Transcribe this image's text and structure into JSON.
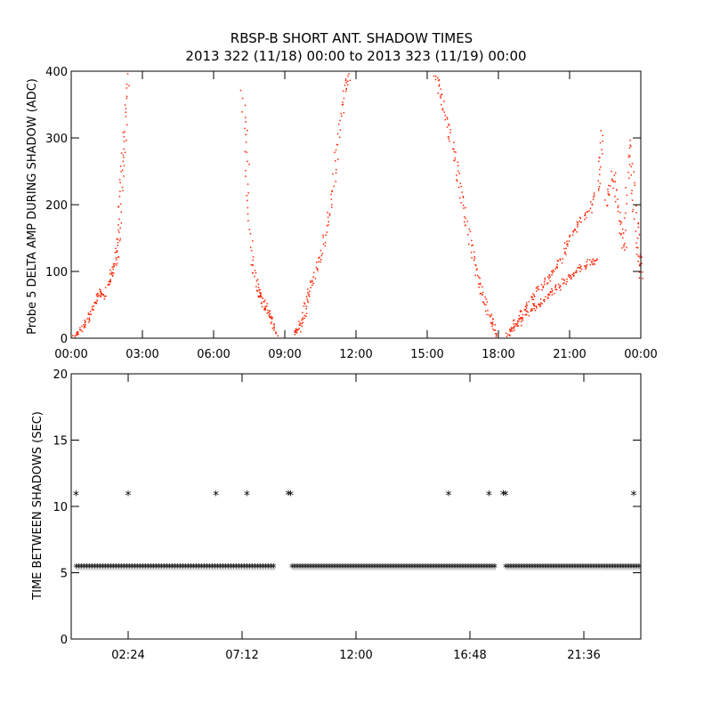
{
  "title_line1": "RBSP-B SHORT ANT. SHADOW TIMES",
  "title_line2": "2013 322 (11/18) 00:00 to 2013 323 (11/19) 00:00",
  "colors": {
    "amp_series": "#ff2200",
    "shadow_series": "#000000",
    "axes": "#000000",
    "background": "#ffffff"
  },
  "chart_data": [
    {
      "type": "scatter",
      "panel": "top",
      "ylabel": "Probe 5 DELTA AMP DURING SHADOW (ADC)",
      "xlabel": "",
      "x_unit": "hours",
      "xlim": [
        0,
        24
      ],
      "ylim": [
        0,
        400
      ],
      "x_tick_values": [
        0,
        3,
        6,
        9,
        12,
        15,
        18,
        21,
        24
      ],
      "x_tick_labels": [
        "00:00",
        "03:00",
        "06:00",
        "09:00",
        "12:00",
        "15:00",
        "18:00",
        "21:00",
        "00:00"
      ],
      "y_tick_values": [
        0,
        100,
        200,
        300,
        400
      ],
      "y_tick_labels": [
        "0",
        "100",
        "200",
        "300",
        "400"
      ],
      "grid": false,
      "series": [
        {
          "color": "#ff2200",
          "segments": [
            {
              "x": [
                0.1,
                0.4,
                0.7,
                1.0,
                1.2,
                1.4
              ],
              "y": [
                3,
                12,
                32,
                55,
                70,
                62
              ]
            },
            {
              "x": [
                1.5,
                1.7,
                1.9,
                2.0,
                2.1,
                2.25,
                2.35
              ],
              "y": [
                80,
                100,
                120,
                160,
                240,
                300,
                400
              ]
            },
            {
              "x": [
                7.2,
                7.4,
                7.6,
                7.8,
                8.0,
                8.2,
                8.4,
                8.6
              ],
              "y": [
                370,
                250,
                120,
                75,
                60,
                45,
                30,
                5
              ]
            },
            {
              "x": [
                9.4,
                9.6,
                9.8,
                10.0,
                10.3,
                10.6,
                10.9,
                11.2,
                11.5,
                11.7
              ],
              "y": [
                5,
                15,
                40,
                70,
                100,
                140,
                200,
                290,
                370,
                400
              ]
            },
            {
              "x": [
                15.3,
                15.6,
                15.9,
                16.2,
                16.5,
                16.8,
                17.1,
                17.4,
                17.7,
                17.9
              ],
              "y": [
                400,
                360,
                310,
                260,
                200,
                140,
                90,
                55,
                25,
                3
              ]
            },
            {
              "x": [
                18.3,
                18.6,
                19.0,
                19.4,
                19.8,
                20.2,
                20.6,
                21.0,
                21.4,
                21.8,
                22.2,
                22.4
              ],
              "y": [
                3,
                20,
                40,
                60,
                80,
                95,
                120,
                150,
                175,
                190,
                230,
                320
              ]
            },
            {
              "x": [
                18.6,
                19.0,
                19.4,
                19.8,
                20.2,
                20.6,
                21.0,
                21.4,
                21.8,
                22.2
              ],
              "y": [
                15,
                30,
                45,
                55,
                70,
                80,
                95,
                105,
                115,
                115
              ]
            },
            {
              "x": [
                22.5,
                22.8,
                23.1,
                23.3,
                23.5,
                23.7,
                23.9,
                24.0
              ],
              "y": [
                200,
                250,
                180,
                130,
                300,
                200,
                130,
                90
              ]
            }
          ]
        }
      ]
    },
    {
      "type": "scatter",
      "panel": "bottom",
      "ylabel": "TIME BETWEEN SHADOWS (SEC)",
      "xlabel": "",
      "x_unit": "hours",
      "xlim": [
        0,
        24
      ],
      "ylim": [
        0,
        20
      ],
      "x_tick_values": [
        2.4,
        7.2,
        12.0,
        16.8,
        21.6
      ],
      "x_tick_labels": [
        "02:24",
        "07:12",
        "12:00",
        "16:48",
        "21:36"
      ],
      "y_tick_values": [
        0,
        5,
        10,
        15,
        20
      ],
      "y_tick_labels": [
        "0",
        "5",
        "10",
        "15",
        "20"
      ],
      "grid": false,
      "marker": "asterisk",
      "baseline_value": 5.45,
      "baseline_ranges": [
        [
          0.2,
          8.6
        ],
        [
          9.3,
          17.9
        ],
        [
          18.3,
          24.0
        ]
      ],
      "series": [
        {
          "color": "#000000",
          "x": [
            0.2,
            2.4,
            6.1,
            7.4,
            9.15,
            9.25,
            15.9,
            17.6,
            18.2,
            18.3,
            23.7
          ],
          "y": [
            10.9,
            10.9,
            10.9,
            10.9,
            10.95,
            10.9,
            10.9,
            10.9,
            10.95,
            10.9,
            10.9
          ]
        }
      ]
    }
  ]
}
